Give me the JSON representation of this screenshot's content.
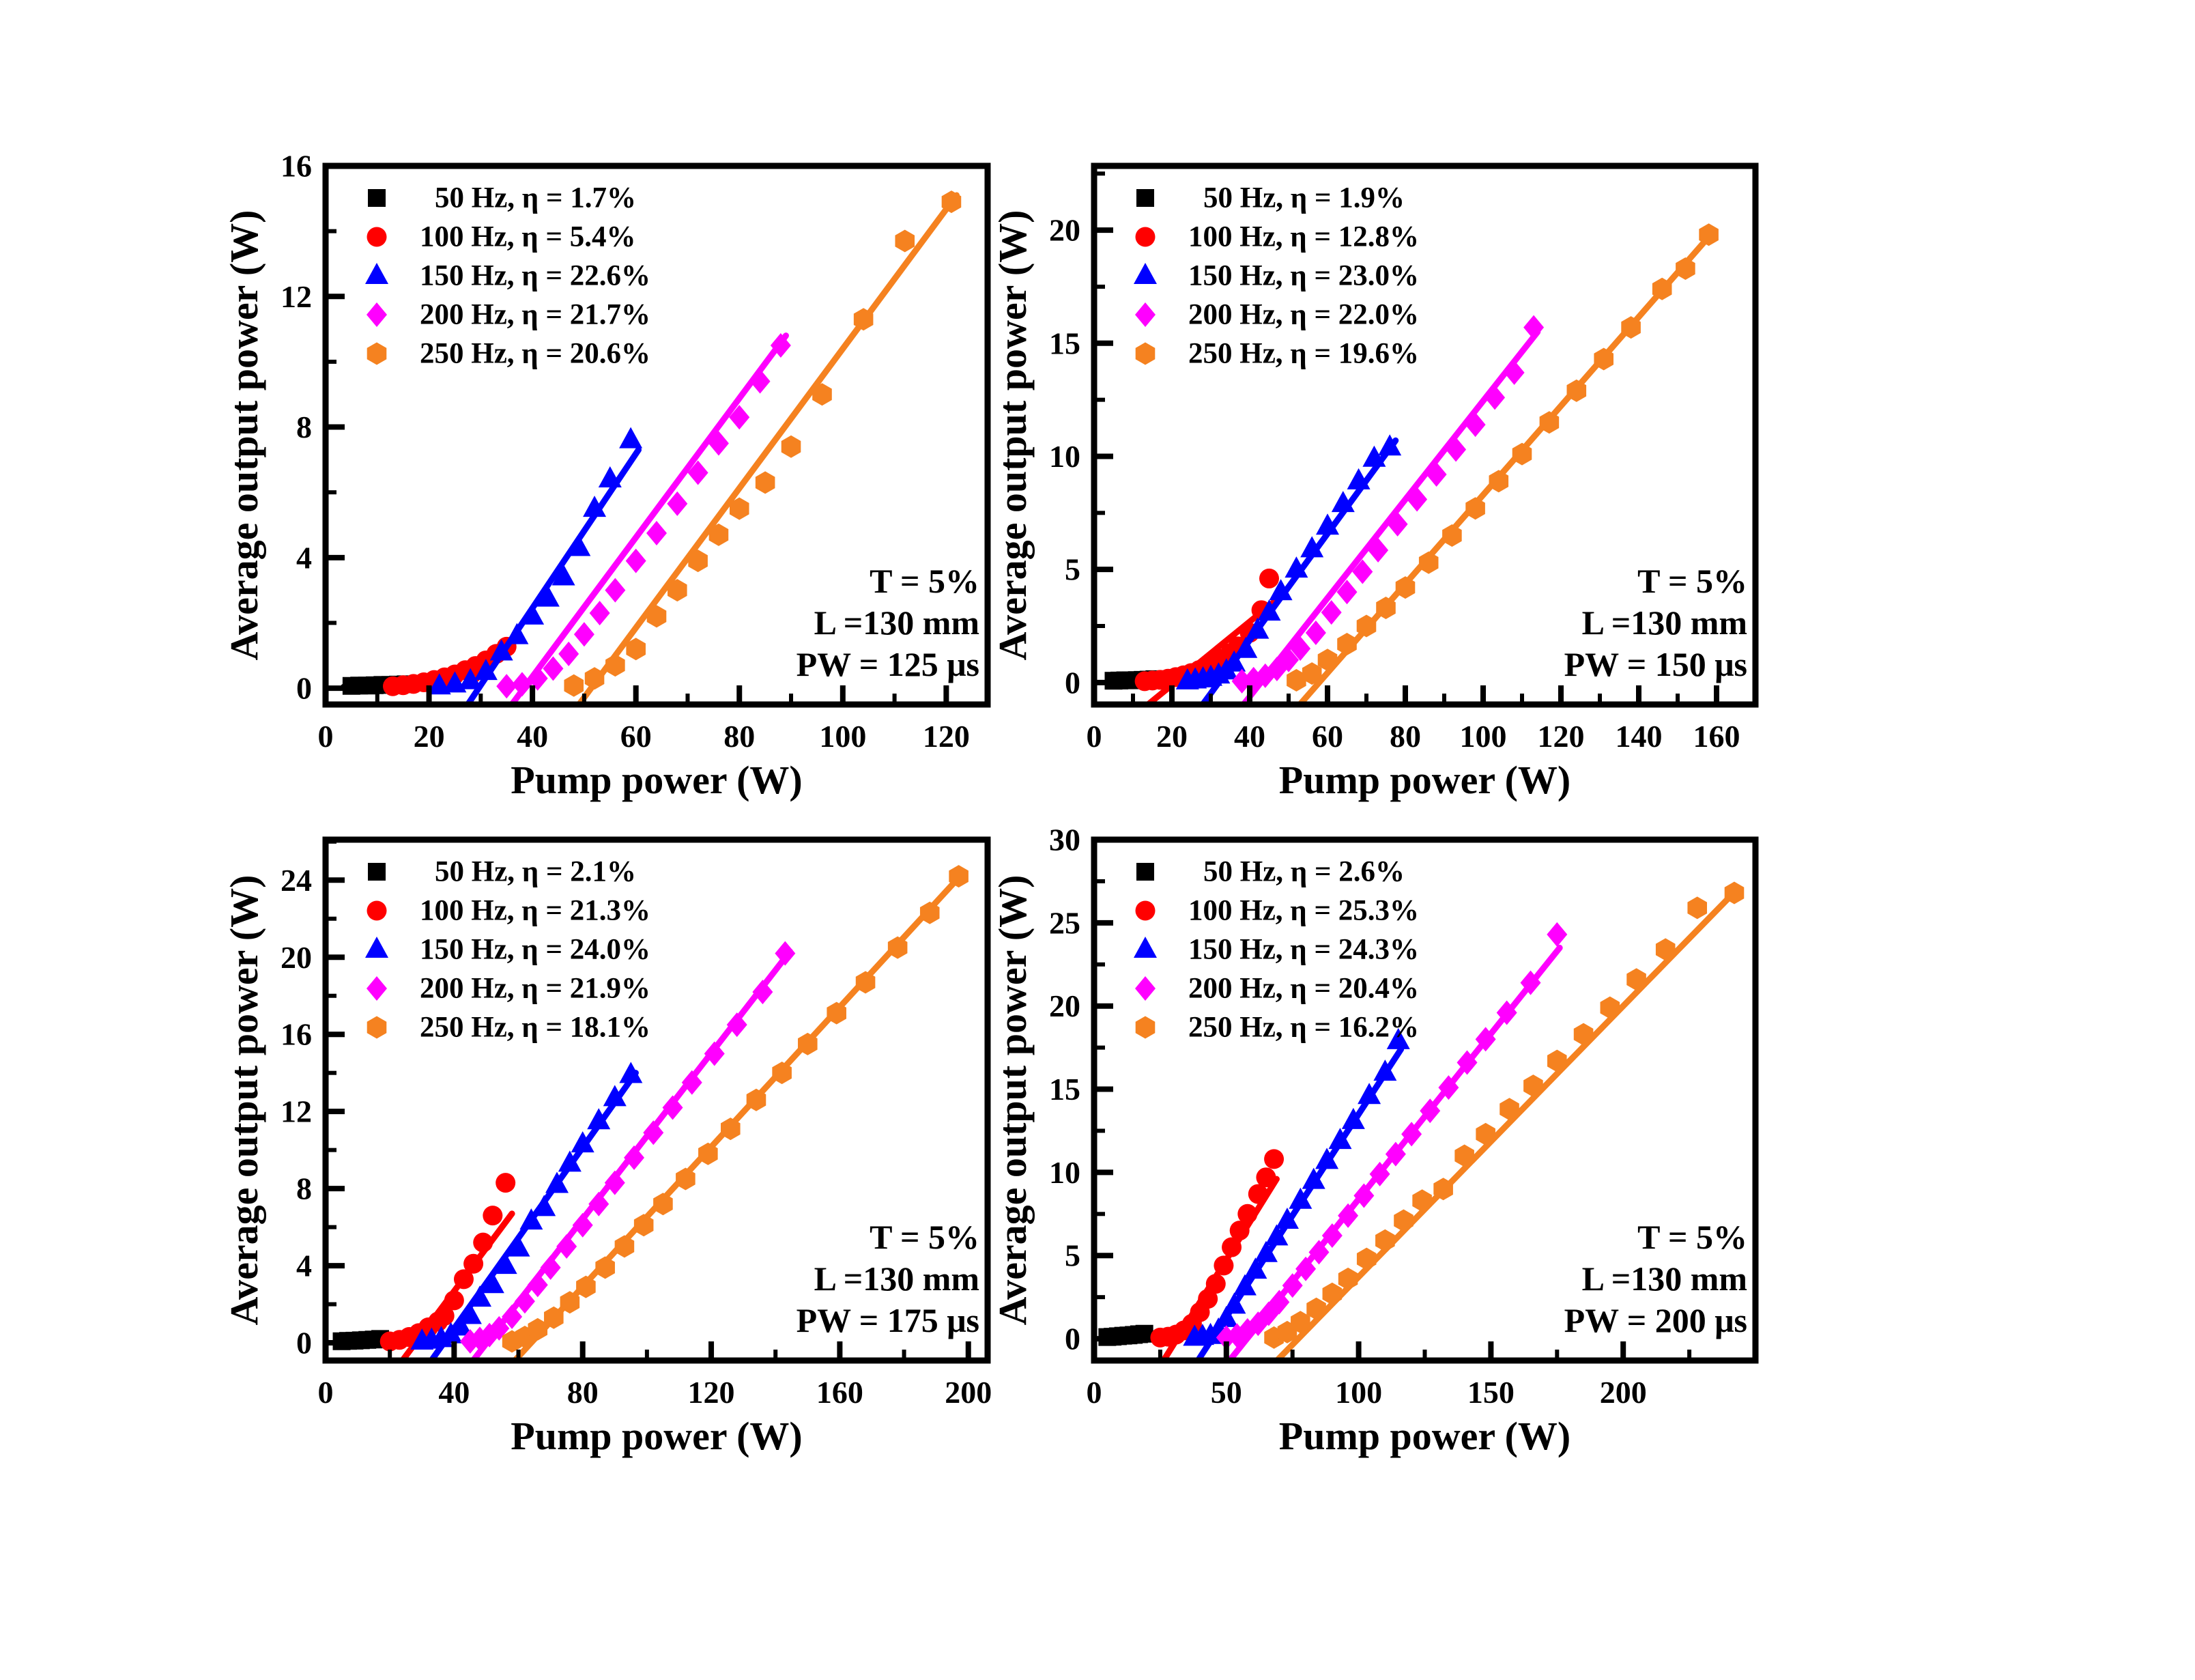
{
  "figure": {
    "type": "multi-panel laser output chart",
    "panel_count": 4,
    "colors": {
      "black": "#000000",
      "red": "#FF0000",
      "blue": "#0000FF",
      "magenta": "#FF00FF",
      "orange": "#F58220"
    }
  },
  "chart_data": [
    {
      "type": "scatter",
      "panel": "PW-125",
      "xlabel": "Pump power (W)",
      "ylabel": "Average output power (W)",
      "annotation": [
        "T = 5%",
        "L =130 mm",
        "PW = 125 μs"
      ],
      "axis": {
        "xmin": 0,
        "xmax": 128,
        "xmajor": 20,
        "xminor": 10,
        "ymin": -0.5,
        "ymax": 16,
        "ymajor": 4,
        "yminor": 2
      },
      "series": [
        {
          "label": "50 Hz, η = 1.7%",
          "freq": "50Hz",
          "marker": "square",
          "color": "#000000",
          "x": [
            5,
            6.5,
            8,
            9.5,
            11,
            12.5,
            14,
            15.5
          ],
          "y": [
            0.07,
            0.08,
            0.08,
            0.09,
            0.1,
            0.1,
            0.11,
            0.12
          ],
          "fit": [
            3.5,
            0.04,
            17,
            0.22
          ]
        },
        {
          "label": "100 Hz, η = 5.4%",
          "freq": "100Hz",
          "marker": "circle",
          "color": "#FF0000",
          "x": [
            13,
            15,
            17,
            19,
            21,
            23,
            25,
            27,
            29,
            31,
            33,
            35
          ],
          "y": [
            0.06,
            0.09,
            0.13,
            0.18,
            0.25,
            0.33,
            0.42,
            0.55,
            0.68,
            0.85,
            1.05,
            1.27
          ],
          "fit": [
            28,
            0.1,
            37.5,
            1.62
          ]
        },
        {
          "label": "150 Hz, η = 22.6%",
          "freq": "150Hz",
          "marker": "triangle",
          "color": "#0000FF",
          "x": [
            22,
            25,
            28,
            31,
            34,
            37,
            40,
            43,
            46,
            49,
            52,
            55,
            59
          ],
          "y": [
            0.06,
            0.12,
            0.22,
            0.5,
            1.1,
            1.6,
            2.2,
            2.75,
            3.4,
            4.3,
            5.5,
            6.4,
            7.6
          ],
          "fit": [
            27.5,
            -0.5,
            60.5,
            7.3
          ]
        },
        {
          "label": "200 Hz, η = 21.7%",
          "freq": "200Hz",
          "marker": "diamond",
          "color": "#FF00FF",
          "x": [
            35,
            38,
            41,
            44,
            47,
            50,
            53,
            56,
            60,
            64,
            68,
            72,
            76,
            80,
            84,
            88
          ],
          "y": [
            0.06,
            0.12,
            0.3,
            0.6,
            1.05,
            1.65,
            2.3,
            3.0,
            3.9,
            4.75,
            5.65,
            6.6,
            7.5,
            8.3,
            9.4,
            10.5
          ],
          "fit": [
            36,
            -0.5,
            89,
            10.8
          ]
        },
        {
          "label": "250 Hz, η = 20.6%",
          "freq": "250Hz",
          "marker": "hexagon",
          "color": "#F58220",
          "x": [
            48,
            52,
            56,
            60,
            64,
            68,
            72,
            76,
            80,
            85,
            90,
            96,
            104,
            112,
            121
          ],
          "y": [
            0.08,
            0.3,
            0.7,
            1.2,
            2.2,
            3.0,
            3.9,
            4.7,
            5.5,
            6.3,
            7.4,
            9.0,
            11.3,
            13.7,
            14.9
          ],
          "fit": [
            49,
            -0.5,
            122,
            15.1
          ]
        }
      ]
    },
    {
      "type": "scatter",
      "panel": "PW-150",
      "xlabel": "Pump power (W)",
      "ylabel": "Average output power (W)",
      "annotation": [
        "T = 5%",
        "L =130 mm",
        "PW = 150 μs"
      ],
      "axis": {
        "xmin": 0,
        "xmax": 170,
        "xmajor": 20,
        "xminor": 10,
        "ymin": -0.97,
        "ymax": 22.84,
        "ymajor": 5,
        "yminor": 2.5
      },
      "series": [
        {
          "label": "50 Hz, η = 1.9%",
          "freq": "50Hz",
          "marker": "square",
          "color": "#000000",
          "x": [
            5,
            6.5,
            8,
            9.5,
            11,
            12.5,
            14,
            15.5
          ],
          "y": [
            0.08,
            0.09,
            0.1,
            0.1,
            0.11,
            0.12,
            0.13,
            0.15
          ],
          "fit": [
            3.5,
            0.05,
            18,
            0.3
          ]
        },
        {
          "label": "100 Hz, η = 12.8%",
          "freq": "100Hz",
          "marker": "circle",
          "color": "#FF0000",
          "x": [
            13,
            15,
            17,
            19,
            21,
            23,
            25,
            27,
            29,
            31,
            33,
            35,
            37,
            40,
            43,
            45
          ],
          "y": [
            0.06,
            0.09,
            0.12,
            0.17,
            0.24,
            0.32,
            0.42,
            0.55,
            0.7,
            0.85,
            1.05,
            1.3,
            1.6,
            2.2,
            3.2,
            4.6
          ],
          "fit": [
            14,
            -0.95,
            46.5,
            3.6
          ]
        },
        {
          "label": "150 Hz, η = 23.0%",
          "freq": "150Hz",
          "marker": "triangle",
          "color": "#0000FF",
          "x": [
            24,
            26,
            28,
            30,
            32,
            34,
            36,
            39,
            42,
            45,
            48,
            52,
            56,
            60,
            64,
            68,
            72,
            76
          ],
          "y": [
            0.06,
            0.1,
            0.15,
            0.22,
            0.32,
            0.5,
            0.85,
            1.45,
            2.3,
            3.1,
            4.0,
            5.0,
            5.9,
            6.9,
            7.9,
            8.9,
            9.9,
            10.4
          ],
          "fit": [
            28,
            -0.95,
            77.5,
            10.7
          ]
        },
        {
          "label": "200 Hz, η = 22.0%",
          "freq": "200Hz",
          "marker": "diamond",
          "color": "#FF00FF",
          "x": [
            38,
            41,
            44,
            47,
            50,
            53,
            57,
            61,
            65,
            69,
            73,
            78,
            83,
            88,
            93,
            98,
            103,
            108,
            113
          ],
          "y": [
            0.06,
            0.15,
            0.3,
            0.6,
            1.0,
            1.5,
            2.2,
            3.1,
            4.0,
            4.9,
            5.85,
            7.0,
            8.1,
            9.2,
            10.3,
            11.4,
            12.6,
            13.7,
            15.7
          ],
          "fit": [
            38.5,
            -0.95,
            114,
            15.5
          ]
        },
        {
          "label": "250 Hz, η = 19.6%",
          "freq": "250Hz",
          "marker": "hexagon",
          "color": "#F58220",
          "x": [
            52,
            56,
            60,
            65,
            70,
            75,
            80,
            86,
            92,
            98,
            104,
            110,
            117,
            124,
            131,
            138,
            146,
            152,
            158
          ],
          "y": [
            0.1,
            0.4,
            1.0,
            1.7,
            2.5,
            3.3,
            4.2,
            5.3,
            6.5,
            7.7,
            8.9,
            10.1,
            11.5,
            12.9,
            14.3,
            15.7,
            17.4,
            18.3,
            19.8
          ],
          "fit": [
            53,
            -0.95,
            159,
            19.9
          ]
        }
      ]
    },
    {
      "type": "scatter",
      "panel": "PW-175",
      "xlabel": "Pump power (W)",
      "ylabel": "Average output power (W)",
      "annotation": [
        "T = 5%",
        "L =130 mm",
        "PW = 175 μs"
      ],
      "axis": {
        "xmin": 0,
        "xmax": 206,
        "xmajor": 40,
        "xminor": 20,
        "ymin": -0.92,
        "ymax": 26.1,
        "ymajor": 4,
        "yminor": 2
      },
      "series": [
        {
          "label": "50 Hz, η = 2.1%",
          "freq": "50Hz",
          "marker": "square",
          "color": "#000000",
          "x": [
            5,
            7,
            9,
            11,
            13,
            15,
            17
          ],
          "y": [
            0.08,
            0.1,
            0.11,
            0.13,
            0.15,
            0.17,
            0.2
          ],
          "fit": [
            3.5,
            0.05,
            19,
            0.32
          ]
        },
        {
          "label": "100 Hz, η = 21.3%",
          "freq": "100Hz",
          "marker": "circle",
          "color": "#FF0000",
          "x": [
            20,
            23,
            26,
            29,
            32,
            35,
            37,
            40,
            43,
            46,
            49,
            52,
            56
          ],
          "y": [
            0.07,
            0.15,
            0.3,
            0.5,
            0.8,
            1.1,
            1.4,
            2.2,
            3.3,
            4.1,
            5.2,
            6.6,
            8.3
          ],
          "fit": [
            24,
            -0.9,
            58,
            6.7
          ]
        },
        {
          "label": "150 Hz, η = 24.0%",
          "freq": "150Hz",
          "marker": "triangle",
          "color": "#0000FF",
          "x": [
            30,
            33,
            36,
            39,
            42,
            45,
            48,
            52,
            56,
            60,
            64,
            68,
            72,
            76,
            80,
            85,
            90,
            95
          ],
          "y": [
            0.07,
            0.12,
            0.2,
            0.4,
            0.8,
            1.4,
            2.3,
            3.0,
            4.0,
            4.9,
            6.3,
            7.0,
            8.2,
            9.3,
            10.3,
            11.5,
            12.7,
            13.9
          ],
          "fit": [
            33,
            -0.9,
            96.5,
            14.0
          ]
        },
        {
          "label": "200 Hz, η = 21.9%",
          "freq": "200Hz",
          "marker": "diamond",
          "color": "#FF00FF",
          "x": [
            45,
            48,
            51,
            54,
            58,
            62,
            66,
            70,
            75,
            80,
            85,
            90,
            96,
            102,
            108,
            114,
            121,
            128,
            136,
            143
          ],
          "y": [
            0.07,
            0.2,
            0.4,
            0.75,
            1.35,
            2.15,
            3.0,
            3.9,
            5.0,
            6.1,
            7.2,
            8.3,
            9.6,
            10.9,
            12.2,
            13.5,
            15.0,
            16.5,
            18.2,
            20.2
          ],
          "fit": [
            46,
            -0.9,
            144.5,
            20.3
          ]
        },
        {
          "label": "250 Hz, η = 18.1%",
          "freq": "250Hz",
          "marker": "hexagon",
          "color": "#F58220",
          "x": [
            58,
            62,
            66,
            71,
            76,
            81,
            87,
            93,
            99,
            105,
            112,
            119,
            126,
            134,
            142,
            150,
            159,
            168,
            178,
            188,
            197
          ],
          "y": [
            0.07,
            0.3,
            0.7,
            1.3,
            2.1,
            2.9,
            3.9,
            5.0,
            6.1,
            7.2,
            8.5,
            9.8,
            11.1,
            12.6,
            14.0,
            15.5,
            17.1,
            18.7,
            20.5,
            22.3,
            24.2
          ],
          "fit": [
            59,
            -0.9,
            198.5,
            24.4
          ]
        }
      ]
    },
    {
      "type": "scatter",
      "panel": "PW-200",
      "xlabel": "Pump power (W)",
      "ylabel": "Average output power (W)",
      "annotation": [
        "T = 5%",
        "L =130 mm",
        "PW = 200 μs"
      ],
      "axis": {
        "xmin": 0,
        "xmax": 250,
        "xmajor": 50,
        "xminor": 25,
        "ymin": -1.31,
        "ymax": 30,
        "ymajor": 5,
        "yminor": 2.5
      },
      "series": [
        {
          "label": "50 Hz, η = 2.6%",
          "freq": "50Hz",
          "marker": "square",
          "color": "#000000",
          "x": [
            5,
            7,
            9,
            11,
            13,
            15,
            17,
            19
          ],
          "y": [
            0.1,
            0.12,
            0.15,
            0.18,
            0.2,
            0.23,
            0.27,
            0.3
          ],
          "fit": [
            3.5,
            0.06,
            21,
            0.42
          ]
        },
        {
          "label": "100 Hz, η = 25.3%",
          "freq": "100Hz",
          "marker": "circle",
          "color": "#FF0000",
          "x": [
            25,
            28,
            31,
            34,
            37,
            40,
            43,
            46,
            49,
            52,
            55,
            58,
            62,
            65,
            68
          ],
          "y": [
            0.07,
            0.12,
            0.25,
            0.5,
            0.9,
            1.6,
            2.4,
            3.3,
            4.4,
            5.5,
            6.5,
            7.5,
            8.7,
            9.7,
            10.8
          ],
          "fit": [
            26.5,
            -1.25,
            69,
            9.6
          ]
        },
        {
          "label": "150 Hz, η = 24.3%",
          "freq": "150Hz",
          "marker": "triangle",
          "color": "#0000FF",
          "x": [
            38,
            41,
            44,
            47,
            50,
            53,
            57,
            61,
            65,
            69,
            73,
            78,
            83,
            88,
            93,
            98,
            104,
            110,
            115
          ],
          "y": [
            0.07,
            0.12,
            0.18,
            0.5,
            1.2,
            2.0,
            3.1,
            4.1,
            5.1,
            6.1,
            7.1,
            8.3,
            9.5,
            10.7,
            11.9,
            13.1,
            14.6,
            16.0,
            17.9
          ],
          "fit": [
            39.5,
            -1.25,
            116,
            17.4
          ]
        },
        {
          "label": "200 Hz, η = 20.4%",
          "freq": "200Hz",
          "marker": "diamond",
          "color": "#FF00FF",
          "x": [
            50,
            54,
            58,
            62,
            66,
            70,
            75,
            80,
            85,
            90,
            96,
            102,
            108,
            114,
            120,
            127,
            134,
            141,
            148,
            156,
            165,
            175
          ],
          "y": [
            0.07,
            0.2,
            0.5,
            0.9,
            1.5,
            2.2,
            3.2,
            4.2,
            5.2,
            6.2,
            7.4,
            8.6,
            9.9,
            11.1,
            12.3,
            13.7,
            15.1,
            16.6,
            18.0,
            19.6,
            21.4,
            24.3
          ],
          "fit": [
            51.5,
            -1.25,
            176,
            23.5
          ]
        },
        {
          "label": "250 Hz, η = 16.2%",
          "freq": "250Hz",
          "marker": "hexagon",
          "color": "#F58220",
          "x": [
            68,
            73,
            78,
            84,
            90,
            96,
            103,
            110,
            117,
            124,
            132,
            140,
            148,
            157,
            166,
            175,
            185,
            195,
            205,
            216,
            228,
            242
          ],
          "y": [
            0.07,
            0.4,
            1.0,
            1.8,
            2.7,
            3.6,
            4.8,
            5.9,
            7.1,
            8.3,
            9.0,
            11.0,
            12.3,
            13.8,
            15.2,
            16.7,
            18.3,
            19.9,
            21.6,
            23.4,
            25.9,
            26.8
          ],
          "fit": [
            69.5,
            -1.25,
            243,
            27.0
          ]
        }
      ]
    }
  ]
}
